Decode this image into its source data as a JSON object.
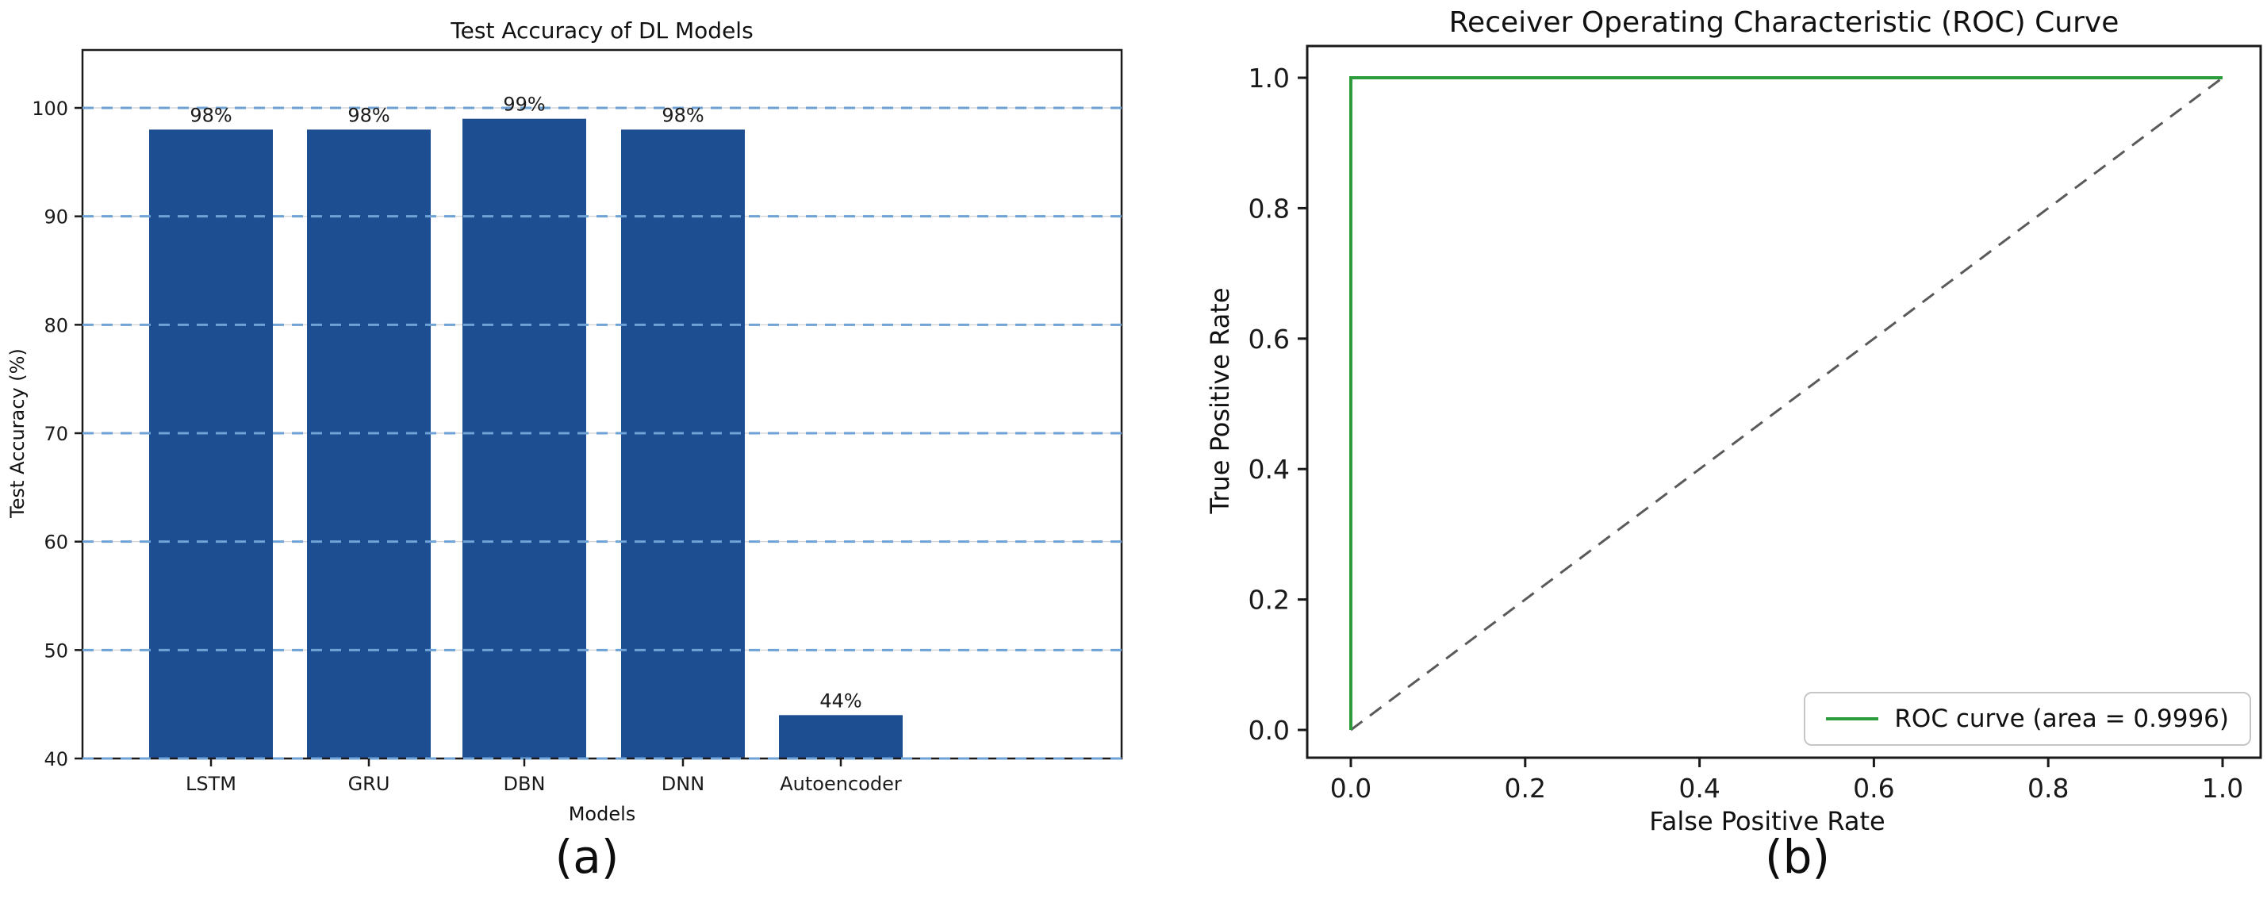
{
  "page_background": "#ffffff",
  "chart_data": [
    {
      "type": "bar",
      "panel_label": "(a)",
      "title": "Test Accuracy of DL Models",
      "xlabel": "Models",
      "ylabel": "Test Accuracy (%)",
      "categories": [
        "LSTM",
        "GRU",
        "DBN",
        "DNN",
        "Autoencoder"
      ],
      "values": [
        98,
        98,
        99,
        98,
        44
      ],
      "bar_labels": [
        "98%",
        "98%",
        "99%",
        "98%",
        "44%"
      ],
      "ylim": [
        40,
        100
      ],
      "yticks": [
        40,
        50,
        60,
        70,
        80,
        90,
        100
      ],
      "grid": "horizontal dashed",
      "legend_position": "none",
      "bar_color": "#1e4e92",
      "grid_dash_color": "#6fa3d6",
      "grid_base_color": "#d8d8d8"
    },
    {
      "type": "line",
      "panel_label": "(b)",
      "title": "Receiver Operating Characteristic (ROC) Curve",
      "xlabel": "False Positive Rate",
      "ylabel": "True Positive Rate",
      "xlim": [
        0.0,
        1.0
      ],
      "ylim": [
        0.0,
        1.0
      ],
      "xticks": [
        0.0,
        0.2,
        0.4,
        0.6,
        0.8,
        1.0
      ],
      "yticks": [
        0.0,
        0.2,
        0.4,
        0.6,
        0.8,
        1.0
      ],
      "grid": "off",
      "auc": 0.9996,
      "legend_position": "lower right",
      "series": [
        {
          "name": "ROC curve (area = 0.9996)",
          "color": "#2d9c3c",
          "line_style": "solid",
          "in_legend": true,
          "points": [
            [
              0.0,
              0.0
            ],
            [
              0.0,
              1.0
            ],
            [
              1.0,
              1.0
            ]
          ]
        },
        {
          "name": "chance diagonal",
          "color": "#5a5a5a",
          "line_style": "dashed",
          "in_legend": false,
          "points": [
            [
              0.0,
              0.0
            ],
            [
              1.0,
              1.0
            ]
          ]
        }
      ]
    }
  ]
}
